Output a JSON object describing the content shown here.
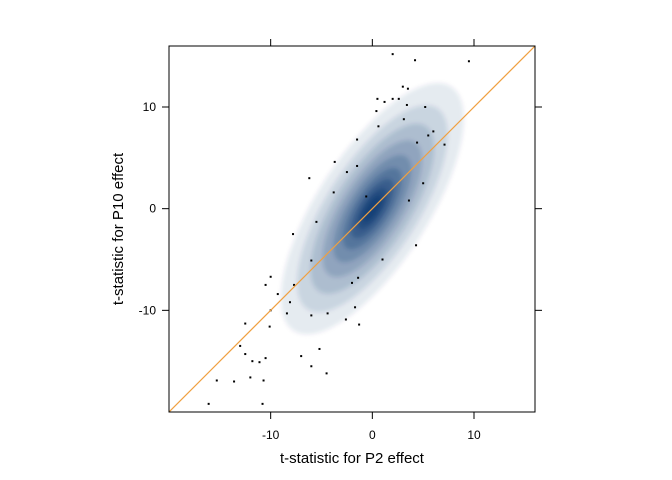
{
  "chart_data": {
    "type": "scatter",
    "style": "smoothed-density scatter with outlier points",
    "xlabel": "t-statistic for P2 effect",
    "ylabel": "t-statistic for P10 effect",
    "xlim": [
      -20,
      16
    ],
    "ylim": [
      -20,
      16
    ],
    "x_ticks": [
      -10,
      0,
      10
    ],
    "y_ticks": [
      -10,
      0,
      10
    ],
    "x_tick_labels": [
      "-10",
      "0",
      "10"
    ],
    "y_tick_labels": [
      "-10",
      "0",
      "10"
    ],
    "grid": false,
    "density_color": "#08306b",
    "reference_line": {
      "slope": 1,
      "intercept": 0,
      "color": "#f0a040"
    },
    "density_core": {
      "center": [
        0,
        0
      ],
      "major_direction": [
        1,
        1.55
      ],
      "spread_major": 4.2,
      "spread_minor": 1.6
    },
    "outliers": [
      [
        2,
        15.2
      ],
      [
        4.2,
        14.6
      ],
      [
        9.5,
        14.5
      ],
      [
        3,
        12
      ],
      [
        3.5,
        11.8
      ],
      [
        0.5,
        10.8
      ],
      [
        1.2,
        10.5
      ],
      [
        2,
        10.8
      ],
      [
        2.6,
        10.8
      ],
      [
        3.4,
        10.2
      ],
      [
        5.2,
        10
      ],
      [
        0.4,
        9.6
      ],
      [
        3.1,
        8.8
      ],
      [
        0.6,
        8.1
      ],
      [
        6,
        7.6
      ],
      [
        5.5,
        7.2
      ],
      [
        -1.5,
        6.8
      ],
      [
        4.4,
        6.5
      ],
      [
        7.1,
        6.3
      ],
      [
        -3.7,
        4.6
      ],
      [
        -1.5,
        4.2
      ],
      [
        -2.5,
        3.6
      ],
      [
        -6.2,
        3
      ],
      [
        5,
        2.5
      ],
      [
        -3.8,
        1.6
      ],
      [
        -0.6,
        1.2
      ],
      [
        3.6,
        0.8
      ],
      [
        -5.5,
        -1.3
      ],
      [
        -7.8,
        -2.5
      ],
      [
        4.3,
        -3.6
      ],
      [
        1,
        -5
      ],
      [
        -6,
        -5.1
      ],
      [
        -10,
        -6.7
      ],
      [
        -10.5,
        -7.5
      ],
      [
        -7.7,
        -7.5
      ],
      [
        -1.4,
        -6.8
      ],
      [
        -2,
        -7.3
      ],
      [
        -9.3,
        -8.4
      ],
      [
        -8.1,
        -9.2
      ],
      [
        -1.7,
        -9.7
      ],
      [
        -10,
        -10
      ],
      [
        -8.4,
        -10.3
      ],
      [
        -6,
        -10.5
      ],
      [
        -4.4,
        -10.3
      ],
      [
        -2.6,
        -10.9
      ],
      [
        -12.5,
        -11.3
      ],
      [
        -10.1,
        -11.6
      ],
      [
        -1.3,
        -11.4
      ],
      [
        -13,
        -13.5
      ],
      [
        -5.2,
        -13.8
      ],
      [
        -12.5,
        -14.3
      ],
      [
        -7,
        -14.5
      ],
      [
        -10.5,
        -14.7
      ],
      [
        -11.8,
        -15
      ],
      [
        -11.1,
        -15.1
      ],
      [
        -6,
        -15.5
      ],
      [
        -4.5,
        -16.2
      ],
      [
        -12,
        -16.6
      ],
      [
        -15.3,
        -16.9
      ],
      [
        -13.6,
        -17
      ],
      [
        -10.7,
        -16.9
      ],
      [
        -16.1,
        -19.2
      ],
      [
        -10.8,
        -19.2
      ]
    ]
  }
}
